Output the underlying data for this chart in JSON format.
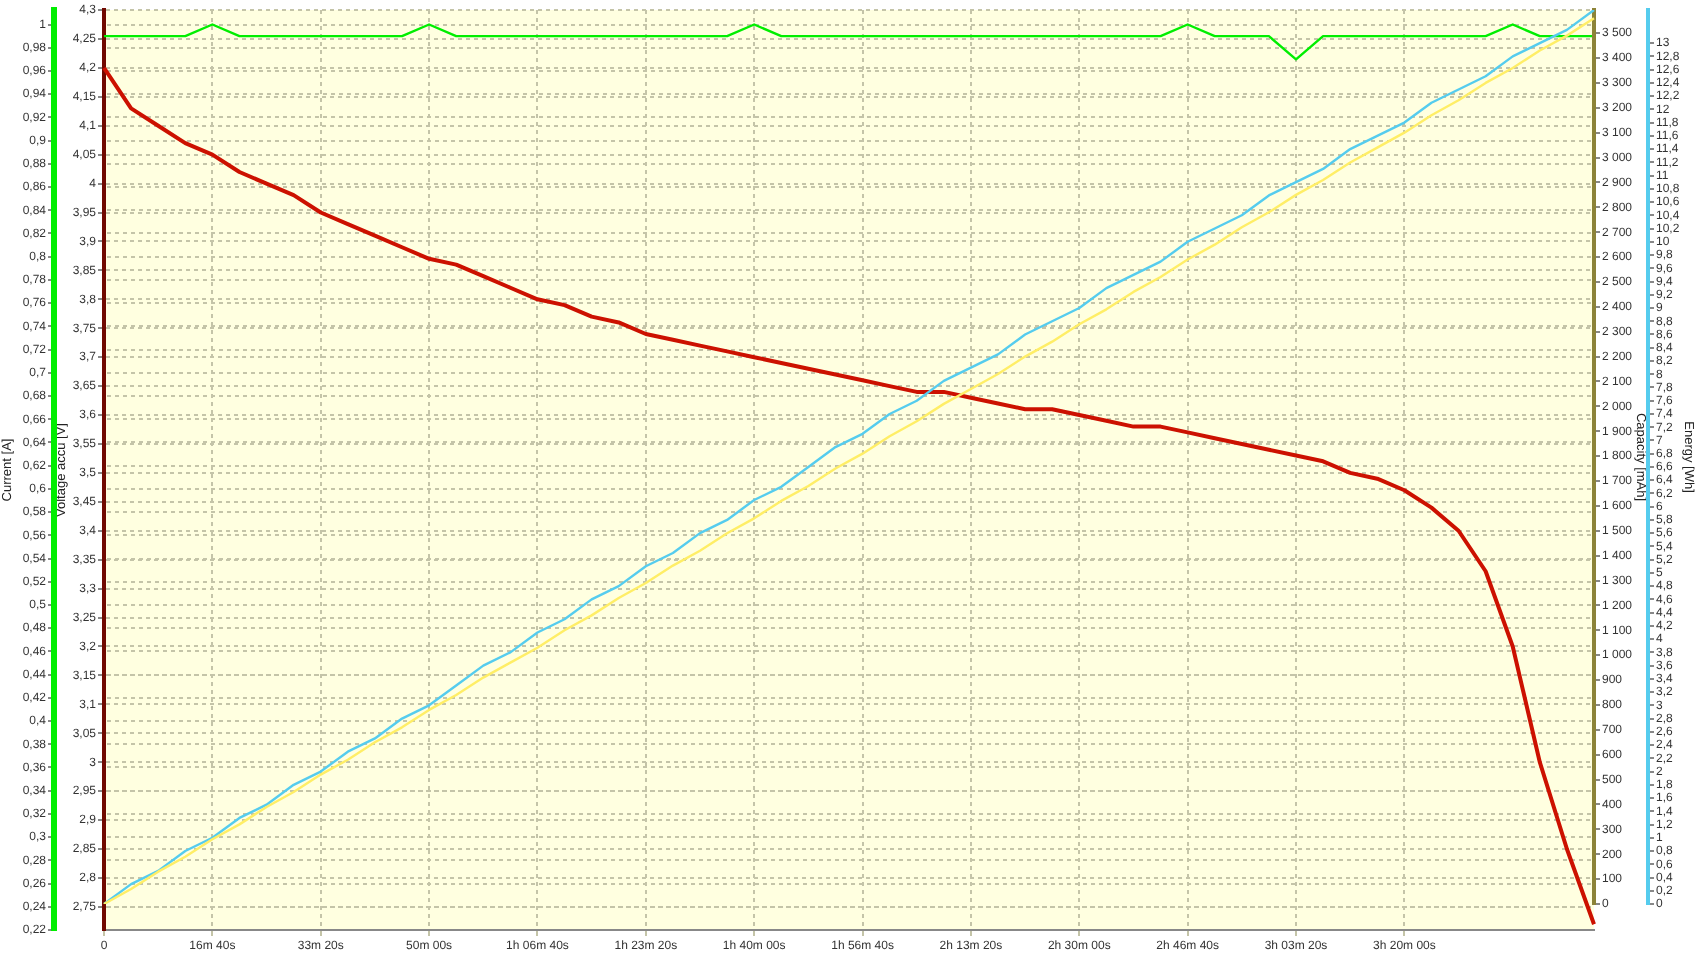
{
  "chart_data": [
    {
      "type": "line",
      "ylabel": "Current [A]",
      "y2label": "Voltage accu [V]",
      "categories": [
        "0",
        null,
        null,
        null,
        "16m 40s",
        null,
        null,
        null,
        "33m 20s",
        null,
        null,
        null,
        "50m 00s",
        null,
        null,
        null,
        "1h 06m 40s",
        null,
        null,
        null,
        "1h 23m 20s",
        null,
        null,
        null,
        "1h 40m 00s",
        null,
        null,
        null,
        "1h 56m 40s",
        null,
        null,
        null,
        "2h 13m 20s",
        null,
        null,
        null,
        "2h 30m 00s",
        null,
        null,
        null,
        "2h 46m 40s",
        null,
        null,
        null,
        "3h 03m 20s",
        null,
        null,
        null,
        "3h 20m 00s",
        null,
        null,
        null,
        null,
        null,
        null,
        null
      ],
      "ylim": [
        0.22,
        1.0125
      ],
      "yticks": [
        {
          "value": 0.22,
          "label": "0,22"
        },
        {
          "value": 0.24,
          "label": "0,24"
        },
        {
          "value": 0.26,
          "label": "0,26"
        },
        {
          "value": 0.28,
          "label": "0,28"
        },
        {
          "value": 0.3,
          "label": "0,3"
        },
        {
          "value": 0.32,
          "label": "0,32"
        },
        {
          "value": 0.34,
          "label": "0,34"
        },
        {
          "value": 0.36,
          "label": "0,36"
        },
        {
          "value": 0.38,
          "label": "0,38"
        },
        {
          "value": 0.4,
          "label": "0,4"
        },
        {
          "value": 0.42,
          "label": "0,42"
        },
        {
          "value": 0.44,
          "label": "0,44"
        },
        {
          "value": 0.46,
          "label": "0,46"
        },
        {
          "value": 0.48,
          "label": "0,48"
        },
        {
          "value": 0.5,
          "label": "0,5"
        },
        {
          "value": 0.52,
          "label": "0,52"
        },
        {
          "value": 0.54,
          "label": "0,54"
        },
        {
          "value": 0.56,
          "label": "0,56"
        },
        {
          "value": 0.58,
          "label": "0,58"
        },
        {
          "value": 0.6,
          "label": "0,6"
        },
        {
          "value": 0.62,
          "label": "0,62"
        },
        {
          "value": 0.64,
          "label": "0,64"
        },
        {
          "value": 0.66,
          "label": "0,66"
        },
        {
          "value": 0.68,
          "label": "0,68"
        },
        {
          "value": 0.7,
          "label": "0,7"
        },
        {
          "value": 0.72,
          "label": "0,72"
        },
        {
          "value": 0.74,
          "label": "0,74"
        },
        {
          "value": 0.76,
          "label": "0,76"
        },
        {
          "value": 0.78,
          "label": "0,78"
        },
        {
          "value": 0.8,
          "label": "0,8"
        },
        {
          "value": 0.82,
          "label": "0,82"
        },
        {
          "value": 0.84,
          "label": "0,84"
        },
        {
          "value": 0.86,
          "label": "0,86"
        },
        {
          "value": 0.88,
          "label": "0,88"
        },
        {
          "value": 0.9,
          "label": "0,9"
        },
        {
          "value": 0.92,
          "label": "0,92"
        },
        {
          "value": 0.94,
          "label": "0,94"
        },
        {
          "value": 0.96,
          "label": "0,96"
        },
        {
          "value": 0.98,
          "label": "0,98"
        },
        1
      ],
      "y2lim": [
        2.71,
        4.3
      ],
      "y2ticks": [
        {
          "value": 2.75,
          "label": "2,75"
        },
        {
          "value": 2.8,
          "label": "2,8"
        },
        {
          "value": 2.85,
          "label": "2,85"
        },
        {
          "value": 2.9,
          "label": "2,9"
        },
        {
          "value": 2.95,
          "label": "2,95"
        },
        3,
        {
          "value": 3.05,
          "label": "3,05"
        },
        {
          "value": 3.1,
          "label": "3,1"
        },
        {
          "value": 3.15,
          "label": "3,15"
        },
        {
          "value": 3.2,
          "label": "3,2"
        },
        {
          "value": 3.25,
          "label": "3,25"
        },
        {
          "value": 3.3,
          "label": "3,3"
        },
        {
          "value": 3.35,
          "label": "3,35"
        },
        {
          "value": 3.4,
          "label": "3,4"
        },
        {
          "value": 3.45,
          "label": "3,45"
        },
        {
          "value": 3.5,
          "label": "3,5"
        },
        {
          "value": 3.55,
          "label": "3,55"
        },
        {
          "value": 3.6,
          "label": "3,6"
        },
        {
          "value": 3.65,
          "label": "3,65"
        },
        {
          "value": 3.7,
          "label": "3,7"
        },
        {
          "value": 3.75,
          "label": "3,75"
        },
        {
          "value": 3.8,
          "label": "3,8"
        },
        {
          "value": 3.85,
          "label": "3,85"
        },
        {
          "value": 3.9,
          "label": "3,9"
        },
        {
          "value": 3.95,
          "label": "3,95"
        },
        4,
        {
          "value": 4.05,
          "label": "4,05"
        },
        {
          "value": 4.1,
          "label": "4,1"
        },
        {
          "value": 4.15,
          "label": "4,15"
        },
        {
          "value": 4.2,
          "label": "4,2"
        },
        {
          "value": 4.25,
          "label": "4,25"
        },
        {
          "value": 4.3,
          "label": "4,3"
        }
      ],
      "grid": true,
      "legend": false,
      "marker": "none",
      "line_style": "solid",
      "series": [
        {
          "color": "#00ee00",
          "values": [
            0.99,
            0.99,
            0.99,
            0.99,
            1.0,
            0.99,
            0.99,
            0.99,
            0.99,
            0.99,
            0.99,
            0.99,
            1.0,
            0.99,
            0.99,
            0.99,
            0.99,
            0.99,
            0.99,
            0.99,
            0.99,
            0.99,
            0.99,
            0.99,
            1.0,
            0.99,
            0.99,
            0.99,
            0.99,
            0.99,
            0.99,
            0.99,
            0.99,
            0.99,
            0.99,
            0.99,
            0.99,
            0.99,
            0.99,
            0.99,
            1.0,
            0.99,
            0.99,
            0.99,
            0.97,
            0.99,
            0.99,
            0.99,
            0.99,
            0.99,
            0.99,
            0.99,
            1.0,
            0.99,
            0.99,
            0.99
          ]
        },
        {
          "color": "#cc1100",
          "axis": "y2",
          "values": [
            4.2,
            4.13,
            4.1,
            4.07,
            4.05,
            4.02,
            4.0,
            3.98,
            3.95,
            3.93,
            3.91,
            3.89,
            3.87,
            3.86,
            3.84,
            3.82,
            3.8,
            3.79,
            3.77,
            3.76,
            3.74,
            3.73,
            3.72,
            3.71,
            3.7,
            3.69,
            3.68,
            3.67,
            3.66,
            3.65,
            3.64,
            3.64,
            3.63,
            3.62,
            3.61,
            3.61,
            3.6,
            3.59,
            3.58,
            3.58,
            3.57,
            3.56,
            3.55,
            3.54,
            3.53,
            3.52,
            3.5,
            3.49,
            3.47,
            3.44,
            3.4,
            3.33,
            3.2,
            3.0,
            2.85,
            2.72
          ]
        }
      ]
    },
    {
      "type": "line",
      "ylabel": "Capacity [mAh]",
      "y2label": "Energy [Wh]",
      "tick_labels": "y",
      "marker": "none",
      "line_style": "solid",
      "categories": [
        null,
        null,
        null,
        null,
        null,
        null,
        null,
        null,
        null,
        null,
        null,
        null,
        null,
        null,
        null,
        null,
        null,
        null,
        null,
        null,
        null,
        null,
        null,
        null,
        null,
        null,
        null,
        null,
        null,
        null,
        null,
        null,
        null,
        null,
        null,
        null,
        null,
        null,
        null,
        null,
        null,
        null,
        null,
        null,
        null,
        null,
        null,
        null,
        null,
        null,
        null,
        null,
        null,
        null,
        null,
        null
      ],
      "ylim": [
        0,
        3593
      ],
      "yticks": [
        0,
        100,
        200,
        300,
        400,
        500,
        600,
        700,
        800,
        900,
        {
          "value": 1000,
          "label": "1 000"
        },
        {
          "value": 1100,
          "label": "1 100"
        },
        {
          "value": 1200,
          "label": "1 200"
        },
        {
          "value": 1300,
          "label": "1 300"
        },
        {
          "value": 1400,
          "label": "1 400"
        },
        {
          "value": 1500,
          "label": "1 500"
        },
        {
          "value": 1600,
          "label": "1 600"
        },
        {
          "value": 1700,
          "label": "1 700"
        },
        {
          "value": 1800,
          "label": "1 800"
        },
        {
          "value": 1900,
          "label": "1 900"
        },
        {
          "value": 2000,
          "label": "2 000"
        },
        {
          "value": 2100,
          "label": "2 100"
        },
        {
          "value": 2200,
          "label": "2 200"
        },
        {
          "value": 2300,
          "label": "2 300"
        },
        {
          "value": 2400,
          "label": "2 400"
        },
        {
          "value": 2500,
          "label": "2 500"
        },
        {
          "value": 2600,
          "label": "2 600"
        },
        {
          "value": 2700,
          "label": "2 700"
        },
        {
          "value": 2800,
          "label": "2 800"
        },
        {
          "value": 2900,
          "label": "2 900"
        },
        {
          "value": 3000,
          "label": "3 000"
        },
        {
          "value": 3100,
          "label": "3 100"
        },
        {
          "value": 3200,
          "label": "3 200"
        },
        {
          "value": 3300,
          "label": "3 300"
        },
        {
          "value": 3400,
          "label": "3 400"
        },
        {
          "value": 3500,
          "label": "3 500"
        }
      ],
      "y2lim": [
        0,
        13.5
      ],
      "y2ticks": [
        0,
        {
          "value": 0.2,
          "label": "0,2"
        },
        {
          "value": 0.4,
          "label": "0,4"
        },
        {
          "value": 0.6,
          "label": "0,6"
        },
        {
          "value": 0.8,
          "label": "0,8"
        },
        1,
        {
          "value": 1.2,
          "label": "1,2"
        },
        {
          "value": 1.4,
          "label": "1,4"
        },
        {
          "value": 1.6,
          "label": "1,6"
        },
        {
          "value": 1.8,
          "label": "1,8"
        },
        2,
        {
          "value": 2.2,
          "label": "2,2"
        },
        {
          "value": 2.4,
          "label": "2,4"
        },
        {
          "value": 2.6,
          "label": "2,6"
        },
        {
          "value": 2.8,
          "label": "2,8"
        },
        3,
        {
          "value": 3.2,
          "label": "3,2"
        },
        {
          "value": 3.4,
          "label": "3,4"
        },
        {
          "value": 3.6,
          "label": "3,6"
        },
        {
          "value": 3.8,
          "label": "3,8"
        },
        4,
        {
          "value": 4.2,
          "label": "4,2"
        },
        {
          "value": 4.4,
          "label": "4,4"
        },
        {
          "value": 4.6,
          "label": "4,6"
        },
        {
          "value": 4.8,
          "label": "4,8"
        },
        5,
        {
          "value": 5.2,
          "label": "5,2"
        },
        {
          "value": 5.4,
          "label": "5,4"
        },
        {
          "value": 5.6,
          "label": "5,6"
        },
        {
          "value": 5.8,
          "label": "5,8"
        },
        6,
        {
          "value": 6.2,
          "label": "6,2"
        },
        {
          "value": 6.4,
          "label": "6,4"
        },
        {
          "value": 6.6,
          "label": "6,6"
        },
        {
          "value": 6.8,
          "label": "6,8"
        },
        7,
        {
          "value": 7.2,
          "label": "7,2"
        },
        {
          "value": 7.4,
          "label": "7,4"
        },
        {
          "value": 7.6,
          "label": "7,6"
        },
        {
          "value": 7.8,
          "label": "7,8"
        },
        8,
        {
          "value": 8.2,
          "label": "8,2"
        },
        {
          "value": 8.4,
          "label": "8,4"
        },
        {
          "value": 8.6,
          "label": "8,6"
        },
        {
          "value": 8.8,
          "label": "8,8"
        },
        9,
        {
          "value": 9.2,
          "label": "9,2"
        },
        {
          "value": 9.4,
          "label": "9,4"
        },
        {
          "value": 9.6,
          "label": "9,6"
        },
        {
          "value": 9.8,
          "label": "9,8"
        },
        10,
        {
          "value": 10.2,
          "label": "10,2"
        },
        {
          "value": 10.4,
          "label": "10,4"
        },
        {
          "value": 10.6,
          "label": "10,6"
        },
        {
          "value": 10.8,
          "label": "10,8"
        },
        11,
        {
          "value": 11.2,
          "label": "11,2"
        },
        {
          "value": 11.4,
          "label": "11,4"
        },
        {
          "value": 11.6,
          "label": "11,6"
        },
        {
          "value": 11.8,
          "label": "11,8"
        },
        12,
        {
          "value": 12.2,
          "label": "12,2"
        },
        {
          "value": 12.4,
          "label": "12,4"
        },
        {
          "value": 12.6,
          "label": "12,6"
        },
        {
          "value": 12.8,
          "label": "12,8"
        },
        13
      ],
      "series": [
        {
          "color": "#ffee66",
          "values": [
            0,
            60,
            130,
            190,
            260,
            320,
            390,
            450,
            520,
            580,
            650,
            710,
            780,
            840,
            910,
            970,
            1030,
            1100,
            1160,
            1230,
            1290,
            1360,
            1420,
            1490,
            1550,
            1620,
            1680,
            1750,
            1810,
            1880,
            1940,
            2010,
            2070,
            2130,
            2200,
            2260,
            2330,
            2390,
            2460,
            2520,
            2590,
            2650,
            2720,
            2780,
            2850,
            2910,
            2980,
            3040,
            3100,
            3170,
            3230,
            3300,
            3360,
            3430,
            3490,
            3560
          ]
        },
        {
          "color": "#55ccee",
          "axis": "y2",
          "values": [
            0,
            0.3,
            0.5,
            0.8,
            1.0,
            1.3,
            1.5,
            1.8,
            2.0,
            2.3,
            2.5,
            2.8,
            3.0,
            3.3,
            3.6,
            3.8,
            4.1,
            4.3,
            4.6,
            4.8,
            5.1,
            5.3,
            5.6,
            5.8,
            6.1,
            6.3,
            6.6,
            6.9,
            7.1,
            7.4,
            7.6,
            7.9,
            8.1,
            8.3,
            8.6,
            8.8,
            9.0,
            9.3,
            9.5,
            9.7,
            10.0,
            10.2,
            10.4,
            10.7,
            10.9,
            11.1,
            11.4,
            11.6,
            11.8,
            12.1,
            12.3,
            12.5,
            12.8,
            13.0,
            13.2,
            13.5
          ]
        }
      ]
    }
  ]
}
